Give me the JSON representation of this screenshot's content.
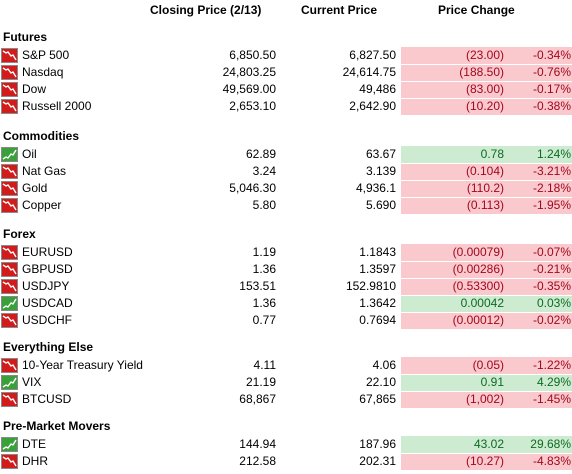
{
  "headers": {
    "closing_price": "Closing Price (2/13)",
    "current_price": "Current Price",
    "price_change": "Price Change"
  },
  "colors": {
    "negative_bg": "#f9c9cd",
    "negative_text": "#a3071e",
    "positive_bg": "#cdebd0",
    "positive_text": "#0d6a23"
  },
  "sections": [
    {
      "title": "Futures",
      "rows": [
        {
          "name": "S&P 500",
          "close": "6,850.50",
          "current": "6,827.50",
          "change": "(23.00)",
          "pct": "-0.34%",
          "direction": "down"
        },
        {
          "name": "Nasdaq",
          "close": "24,803.25",
          "current": "24,614.75",
          "change": "(188.50)",
          "pct": "-0.76%",
          "direction": "down"
        },
        {
          "name": "Dow",
          "close": "49,569.00",
          "current": "49,486",
          "change": "(83.00)",
          "pct": "-0.17%",
          "direction": "down"
        },
        {
          "name": "Russell 2000",
          "close": "2,653.10",
          "current": "2,642.90",
          "change": "(10.20)",
          "pct": "-0.38%",
          "direction": "down"
        }
      ]
    },
    {
      "title": "Commodities",
      "rows": [
        {
          "name": "Oil",
          "close": "62.89",
          "current": "63.67",
          "change": "0.78",
          "pct": "1.24%",
          "direction": "up"
        },
        {
          "name": "Nat Gas",
          "close": "3.24",
          "current": "3.139",
          "change": "(0.104)",
          "pct": "-3.21%",
          "direction": "down"
        },
        {
          "name": "Gold",
          "close": "5,046.30",
          "current": "4,936.1",
          "change": "(110.2)",
          "pct": "-2.18%",
          "direction": "down"
        },
        {
          "name": "Copper",
          "close": "5.80",
          "current": "5.690",
          "change": "(0.113)",
          "pct": "-1.95%",
          "direction": "down"
        }
      ]
    },
    {
      "title": "Forex",
      "rows": [
        {
          "name": "EURUSD",
          "close": "1.19",
          "current": "1.1843",
          "change": "(0.00079)",
          "pct": "-0.07%",
          "direction": "down"
        },
        {
          "name": "GBPUSD",
          "close": "1.36",
          "current": "1.3597",
          "change": "(0.00286)",
          "pct": "-0.21%",
          "direction": "down"
        },
        {
          "name": "USDJPY",
          "close": "153.51",
          "current": "152.9810",
          "change": "(0.53300)",
          "pct": "-0.35%",
          "direction": "down"
        },
        {
          "name": "USDCAD",
          "close": "1.36",
          "current": "1.3642",
          "change": "0.00042",
          "pct": "0.03%",
          "direction": "up"
        },
        {
          "name": "USDCHF",
          "close": "0.77",
          "current": "0.7694",
          "change": "(0.00012)",
          "pct": "-0.02%",
          "direction": "down"
        }
      ]
    },
    {
      "title": "Everything Else",
      "rows": [
        {
          "name": "10-Year Treasury Yield",
          "close": "4.11",
          "current": "4.06",
          "change": "(0.05)",
          "pct": "-1.22%",
          "direction": "down"
        },
        {
          "name": "VIX",
          "close": "21.19",
          "current": "22.10",
          "change": "0.91",
          "pct": "4.29%",
          "direction": "up"
        },
        {
          "name": "BTCUSD",
          "close": "68,867",
          "current": "67,865",
          "change": "(1,002)",
          "pct": "-1.45%",
          "direction": "down"
        }
      ]
    },
    {
      "title": "Pre-Market Movers",
      "rows": [
        {
          "name": "DTE",
          "close": "144.94",
          "current": "187.96",
          "change": "43.02",
          "pct": "29.68%",
          "direction": "up"
        },
        {
          "name": "DHR",
          "close": "212.58",
          "current": "202.31",
          "change": "(10.27)",
          "pct": "-4.83%",
          "direction": "down"
        }
      ]
    }
  ]
}
